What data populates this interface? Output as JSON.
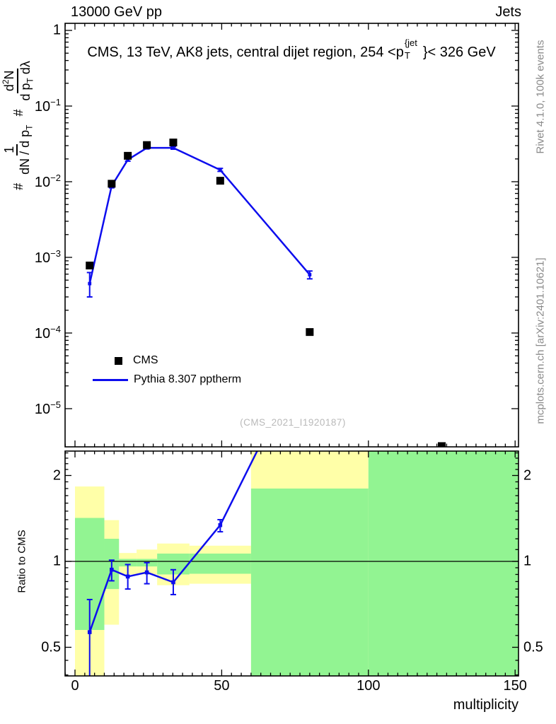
{
  "header": {
    "beam": "13000 GeV pp",
    "category": "Jets"
  },
  "title": {
    "pre": "CMS, 13 TeV, AK8 jets, central dijet region, 254 <p",
    "sup": "{jet",
    "sub": "T",
    "post": "}< 326 GeV"
  },
  "ylabel_main": {
    "hash1": "#",
    "frac1": {
      "num": "1",
      "den_pre": "dN / d p",
      "den_sub": "T"
    },
    "hash2": "#",
    "frac2": {
      "num_pre": "d",
      "num_sup": "2",
      "num_post": "N",
      "den_pre": "d p",
      "den_sub": "T",
      "den_post": " dλ"
    }
  },
  "ratio_ylabel": "Ratio to CMS",
  "watermark": "(CMS_2021_I1920187)",
  "side_notes": {
    "top": "Rivet 4.1.0,  100k events",
    "bottom": "mcplots.cern.ch [arXiv:2401.10621]"
  },
  "legend": [
    {
      "label": "CMS",
      "marker": "square",
      "color": "#000000"
    },
    {
      "label": "Pythia 8.307 pptherm",
      "marker": "line",
      "color": "#0d0dee"
    }
  ],
  "colors": {
    "line": "#0d0dee",
    "band_yellow": "#ffffa8",
    "band_green": "#92f492",
    "frame": "#000000"
  },
  "chart_data": {
    "type": "line",
    "title": "CMS, 13 TeV, AK8 jets, central dijet region, 254 <p_T^{jet}}< 326 GeV",
    "xlabel": "multiplicity",
    "xlim": [
      -3.4,
      151.2
    ],
    "x_major_ticks": [
      0,
      50,
      100,
      150
    ],
    "legend_position": "left-middle",
    "panels": {
      "main": {
        "ylog": true,
        "ylim": [
          3.1e-06,
          1.24
        ],
        "ytick_exponents": [
          0,
          -1,
          -2,
          -3,
          -4,
          -5
        ],
        "series": [
          {
            "name": "CMS",
            "kind": "markers",
            "marker": "filled-square",
            "color": "#000000",
            "x": [
              5,
              12.5,
              18,
              24.5,
              33.5,
              49.5,
              80,
              125
            ],
            "y": [
              0.00078,
              0.0094,
              0.022,
              0.0305,
              0.033,
              0.0103,
              0.000103,
              3.2e-06
            ]
          },
          {
            "name": "Pythia 8.307 pptherm",
            "kind": "line+errors",
            "color": "#0d0dee",
            "x": [
              5,
              12.5,
              18,
              24.5,
              33.5,
              49.5,
              80
            ],
            "y": [
              0.00045,
              0.0088,
              0.0195,
              0.028,
              0.028,
              0.0143,
              0.00059
            ],
            "yerr_lo": [
              0.0003,
              0.0083,
              0.0187,
              0.0271,
              0.0269,
              0.0137,
              0.00052
            ],
            "yerr_hi": [
              0.00063,
              0.0093,
              0.0203,
              0.0289,
              0.0291,
              0.015,
              0.00066
            ]
          }
        ]
      },
      "ratio": {
        "ylog2": true,
        "ylim": [
          0.397,
          2.436
        ],
        "ytick_values": [
          0.5,
          1,
          2
        ],
        "ytick_labels": [
          "0.5",
          "1",
          "2"
        ],
        "unity_line": 1,
        "bands": [
          {
            "x": [
              0,
              10
            ],
            "yellow": [
              0.397,
              1.83
            ],
            "green": [
              0.575,
              1.42
            ]
          },
          {
            "x": [
              10,
              15
            ],
            "yellow": [
              0.6,
              1.395
            ],
            "green": [
              0.8,
              1.2
            ]
          },
          {
            "x": [
              15,
              21
            ],
            "yellow": [
              0.9,
              1.07
            ],
            "green": [
              0.96,
              1.02
            ]
          },
          {
            "x": [
              21,
              28
            ],
            "yellow": [
              0.9,
              1.1
            ],
            "green": [
              0.96,
              1.02
            ]
          },
          {
            "x": [
              28,
              39
            ],
            "yellow": [
              0.825,
              1.155
            ],
            "green": [
              0.9,
              1.065
            ]
          },
          {
            "x": [
              39,
              60
            ],
            "yellow": [
              0.835,
              1.135
            ],
            "green": [
              0.905,
              1.065
            ]
          },
          {
            "x": [
              60,
              100
            ],
            "yellow": [
              0.397,
              2.436
            ],
            "green": [
              0.397,
              1.8
            ]
          },
          {
            "x": [
              100,
              151.2
            ],
            "green": [
              0.397,
              2.436
            ]
          }
        ],
        "points": {
          "x": [
            5,
            12.5,
            18,
            24.5,
            33.5,
            49.5
          ],
          "y": [
            0.565,
            0.935,
            0.885,
            0.915,
            0.845,
            1.34
          ],
          "yerr_lo": [
            0.38,
            0.855,
            0.8,
            0.835,
            0.765,
            1.27
          ],
          "yerr_hi": [
            0.735,
            1.01,
            0.975,
            0.99,
            0.935,
            1.4
          ],
          "line_continues_to": {
            "x": 80,
            "y": 5.7
          }
        }
      }
    }
  }
}
